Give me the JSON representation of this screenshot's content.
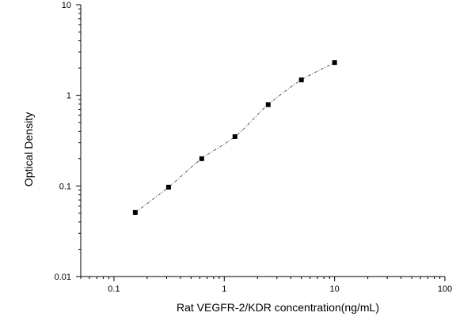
{
  "chart_data": {
    "type": "scatter",
    "title": "",
    "xlabel": "Rat VEGFR-2/KDR concentration(ng/mL)",
    "ylabel": "Optical Density",
    "xscale": "log",
    "yscale": "log",
    "xlim": [
      0.05,
      100
    ],
    "ylim": [
      0.01,
      10
    ],
    "grid": false,
    "legend": "none",
    "x_tick_labels": [
      "0.1",
      "1",
      "10",
      "100"
    ],
    "y_tick_labels": [
      "0.01",
      "0.1",
      "1",
      "10"
    ],
    "x_tick_values": [
      0.1,
      1,
      10,
      100
    ],
    "y_tick_values": [
      0.01,
      0.1,
      1,
      10
    ],
    "series": [
      {
        "marker": "square",
        "x": [
          0.156,
          0.3125,
          0.625,
          1.25,
          2.5,
          5,
          10
        ],
        "y": [
          0.051,
          0.097,
          0.2,
          0.35,
          0.79,
          1.48,
          2.3
        ]
      }
    ],
    "fit_curve": {
      "style": "dash-dot",
      "x_range": [
        0.156,
        10
      ]
    },
    "colors": {
      "marker": "#000000",
      "axis": "#000000",
      "curve": "#333333"
    }
  }
}
